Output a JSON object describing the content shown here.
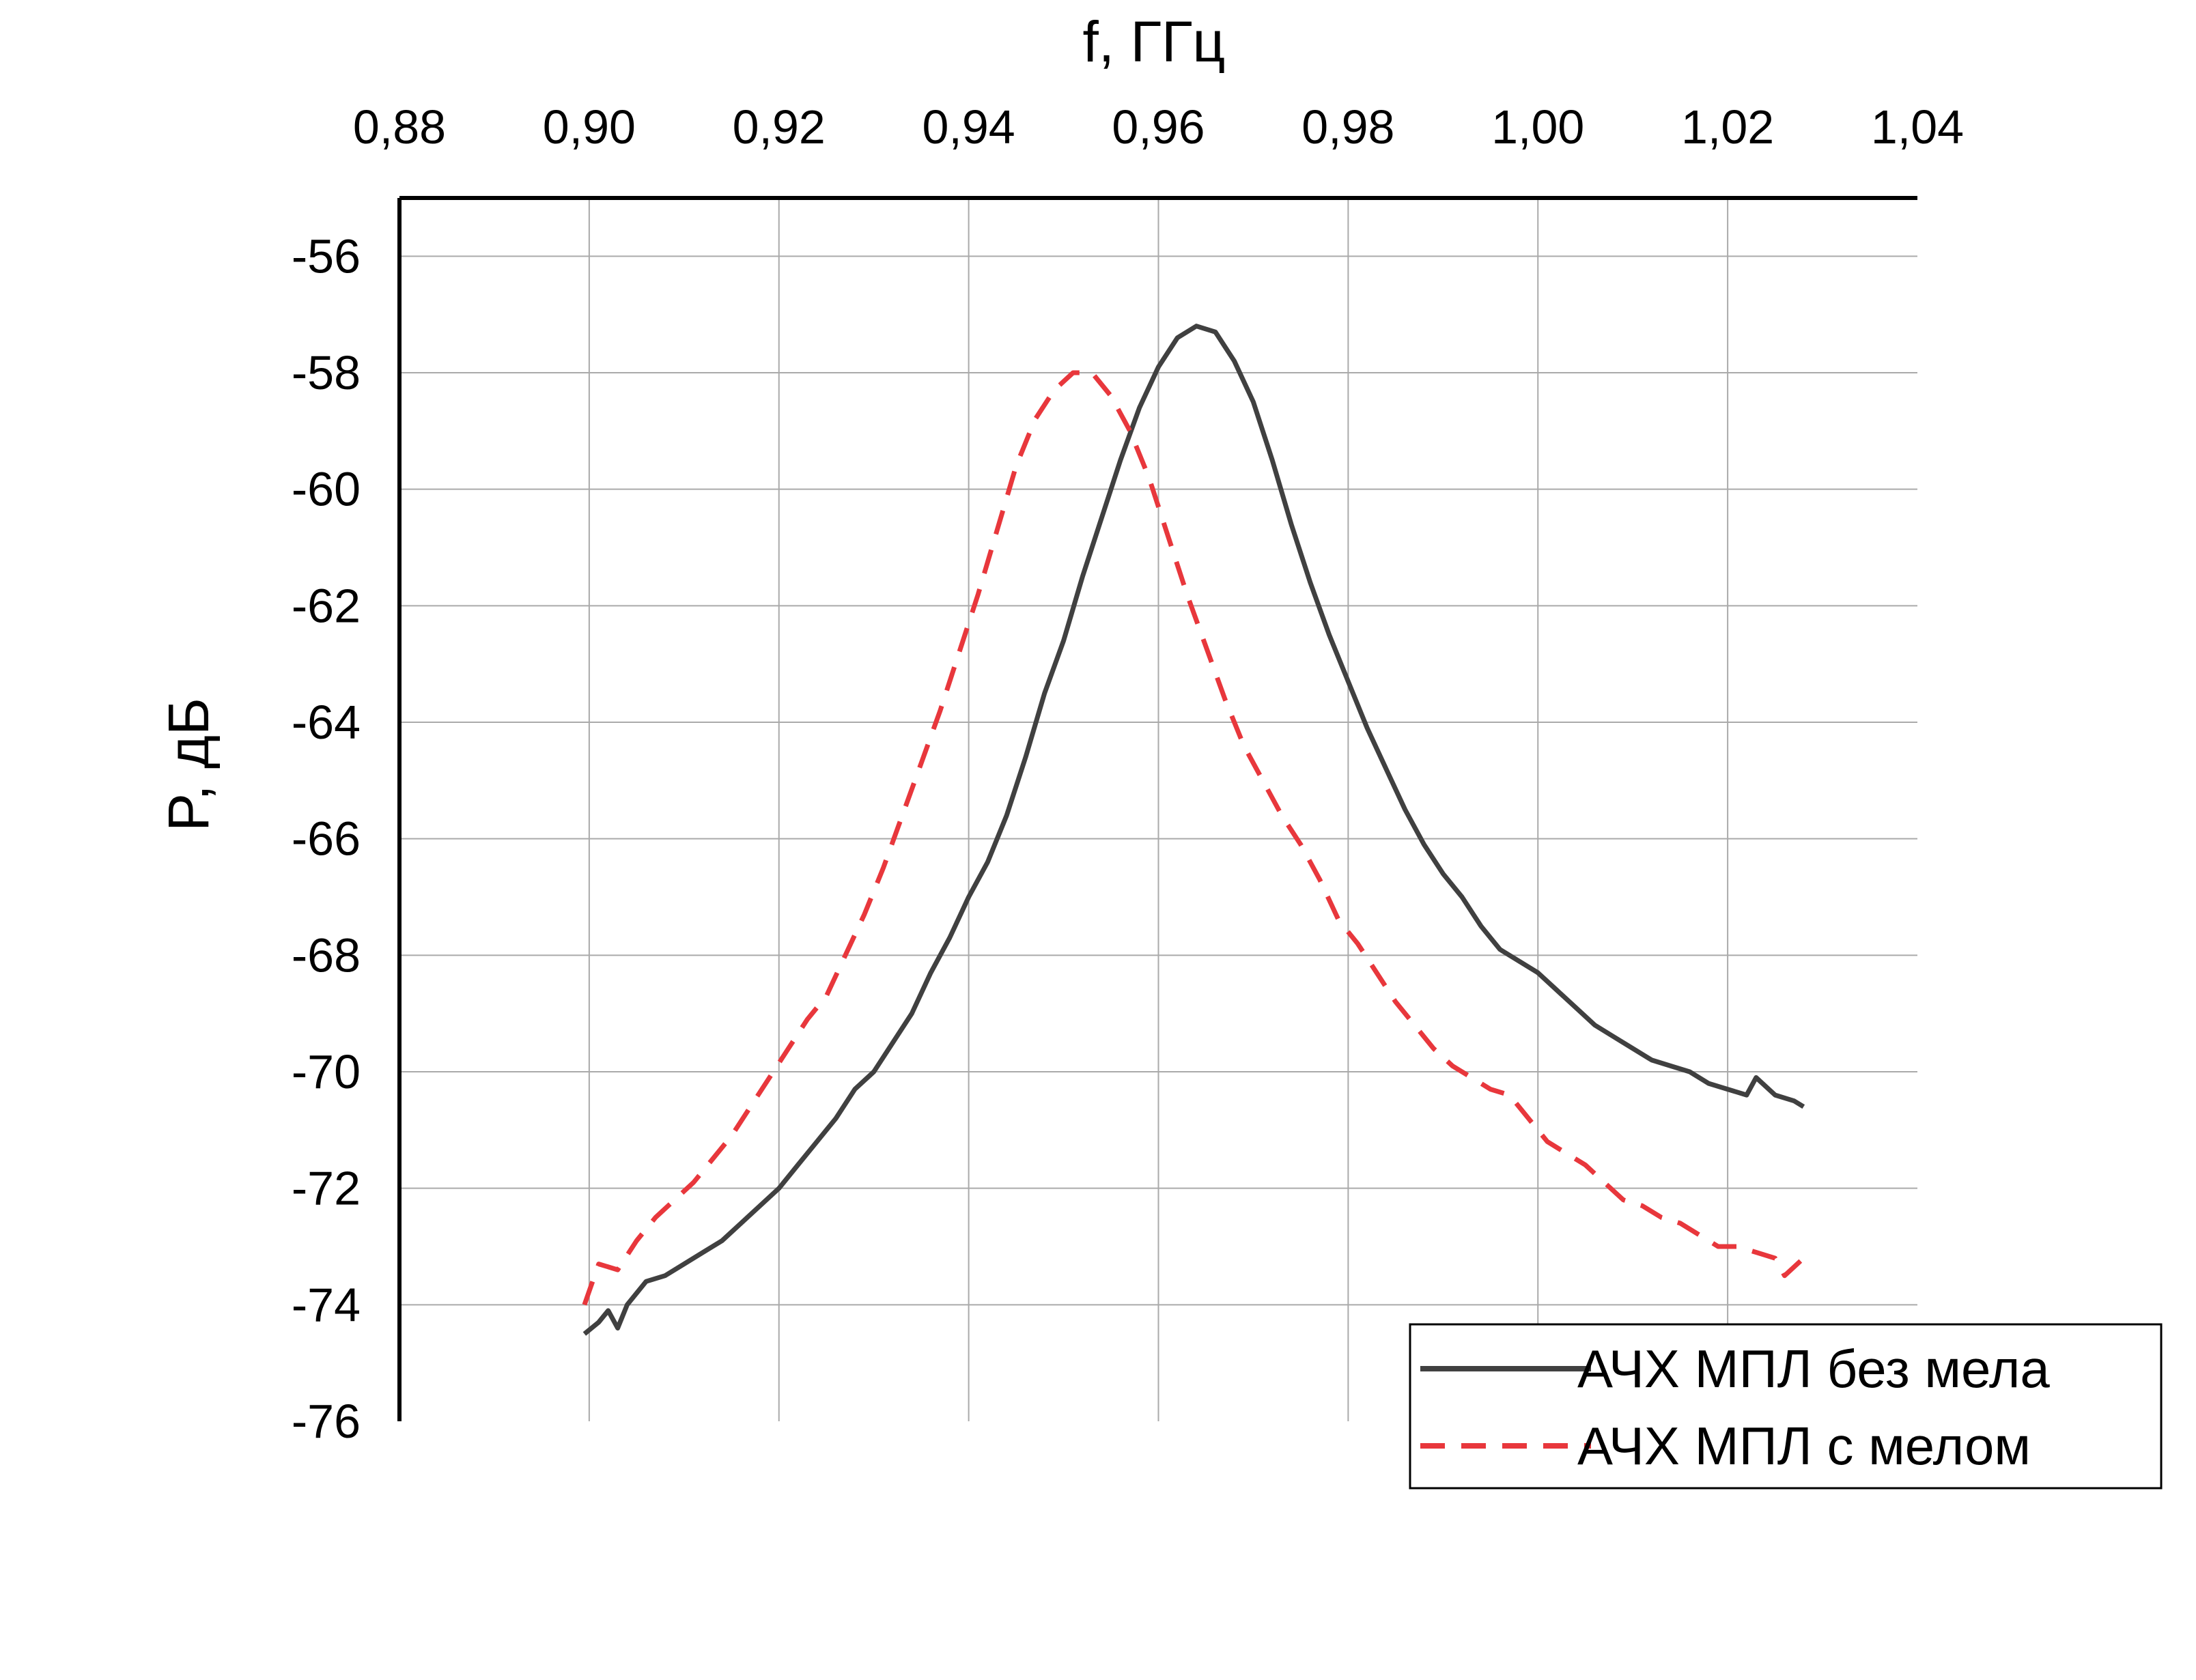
{
  "chart_data": {
    "type": "line",
    "xlabel": "f, ГГц",
    "ylabel": "P, дБ",
    "xlim": [
      0.88,
      1.04
    ],
    "ylim": [
      -76,
      -55
    ],
    "x_ticks": [
      "0,88",
      "0,90",
      "0,92",
      "0,94",
      "0,96",
      "0,98",
      "1,00",
      "1,02",
      "1,04"
    ],
    "y_ticks": [
      "-56",
      "-58",
      "-60",
      "-62",
      "-64",
      "-66",
      "-68",
      "-70",
      "-72",
      "-74",
      "-76"
    ],
    "x_tick_values": [
      0.88,
      0.9,
      0.92,
      0.94,
      0.96,
      0.98,
      1.0,
      1.02,
      1.04
    ],
    "y_tick_values": [
      -56,
      -58,
      -60,
      -62,
      -64,
      -66,
      -68,
      -70,
      -72,
      -74,
      -76
    ],
    "x_axis_position": "top",
    "grid": true,
    "legend_position": "bottom-right",
    "series": [
      {
        "name": "АЧХ МПЛ без мела",
        "color": "#404040",
        "style": "solid",
        "points": [
          [
            0.8995,
            -74.5
          ],
          [
            0.901,
            -74.3
          ],
          [
            0.902,
            -74.1
          ],
          [
            0.903,
            -74.4
          ],
          [
            0.904,
            -74.0
          ],
          [
            0.906,
            -73.6
          ],
          [
            0.908,
            -73.5
          ],
          [
            0.91,
            -73.3
          ],
          [
            0.912,
            -73.1
          ],
          [
            0.914,
            -72.9
          ],
          [
            0.916,
            -72.6
          ],
          [
            0.918,
            -72.3
          ],
          [
            0.92,
            -72.0
          ],
          [
            0.922,
            -71.6
          ],
          [
            0.924,
            -71.2
          ],
          [
            0.926,
            -70.8
          ],
          [
            0.928,
            -70.3
          ],
          [
            0.93,
            -70.0
          ],
          [
            0.932,
            -69.5
          ],
          [
            0.934,
            -69.0
          ],
          [
            0.936,
            -68.3
          ],
          [
            0.938,
            -67.7
          ],
          [
            0.94,
            -67.0
          ],
          [
            0.942,
            -66.4
          ],
          [
            0.944,
            -65.6
          ],
          [
            0.946,
            -64.6
          ],
          [
            0.948,
            -63.5
          ],
          [
            0.95,
            -62.6
          ],
          [
            0.952,
            -61.5
          ],
          [
            0.954,
            -60.5
          ],
          [
            0.956,
            -59.5
          ],
          [
            0.958,
            -58.6
          ],
          [
            0.96,
            -57.9
          ],
          [
            0.962,
            -57.4
          ],
          [
            0.964,
            -57.2
          ],
          [
            0.966,
            -57.3
          ],
          [
            0.968,
            -57.8
          ],
          [
            0.97,
            -58.5
          ],
          [
            0.972,
            -59.5
          ],
          [
            0.974,
            -60.6
          ],
          [
            0.976,
            -61.6
          ],
          [
            0.978,
            -62.5
          ],
          [
            0.98,
            -63.3
          ],
          [
            0.982,
            -64.1
          ],
          [
            0.984,
            -64.8
          ],
          [
            0.986,
            -65.5
          ],
          [
            0.988,
            -66.1
          ],
          [
            0.99,
            -66.6
          ],
          [
            0.992,
            -67.0
          ],
          [
            0.994,
            -67.5
          ],
          [
            0.996,
            -67.9
          ],
          [
            0.998,
            -68.1
          ],
          [
            1.0,
            -68.3
          ],
          [
            1.002,
            -68.6
          ],
          [
            1.004,
            -68.9
          ],
          [
            1.006,
            -69.2
          ],
          [
            1.008,
            -69.4
          ],
          [
            1.01,
            -69.6
          ],
          [
            1.012,
            -69.8
          ],
          [
            1.014,
            -69.9
          ],
          [
            1.016,
            -70.0
          ],
          [
            1.018,
            -70.2
          ],
          [
            1.02,
            -70.3
          ],
          [
            1.022,
            -70.4
          ],
          [
            1.023,
            -70.1
          ],
          [
            1.025,
            -70.4
          ],
          [
            1.027,
            -70.5
          ],
          [
            1.028,
            -70.6
          ]
        ]
      },
      {
        "name": "АЧХ МПЛ с мелом",
        "color": "#e8373c",
        "style": "dashed",
        "points": [
          [
            0.8995,
            -74.0
          ],
          [
            0.901,
            -73.3
          ],
          [
            0.903,
            -73.4
          ],
          [
            0.905,
            -72.9
          ],
          [
            0.907,
            -72.5
          ],
          [
            0.909,
            -72.2
          ],
          [
            0.911,
            -71.9
          ],
          [
            0.913,
            -71.5
          ],
          [
            0.915,
            -71.1
          ],
          [
            0.917,
            -70.6
          ],
          [
            0.919,
            -70.1
          ],
          [
            0.921,
            -69.6
          ],
          [
            0.923,
            -69.1
          ],
          [
            0.925,
            -68.7
          ],
          [
            0.927,
            -68.0
          ],
          [
            0.929,
            -67.3
          ],
          [
            0.931,
            -66.5
          ],
          [
            0.933,
            -65.6
          ],
          [
            0.935,
            -64.7
          ],
          [
            0.937,
            -63.8
          ],
          [
            0.939,
            -62.8
          ],
          [
            0.941,
            -61.8
          ],
          [
            0.943,
            -60.7
          ],
          [
            0.945,
            -59.6
          ],
          [
            0.947,
            -58.8
          ],
          [
            0.949,
            -58.3
          ],
          [
            0.951,
            -58.0
          ],
          [
            0.953,
            -58.0
          ],
          [
            0.955,
            -58.4
          ],
          [
            0.957,
            -59.0
          ],
          [
            0.959,
            -59.8
          ],
          [
            0.961,
            -60.8
          ],
          [
            0.963,
            -61.8
          ],
          [
            0.965,
            -62.7
          ],
          [
            0.967,
            -63.6
          ],
          [
            0.969,
            -64.4
          ],
          [
            0.971,
            -65.0
          ],
          [
            0.973,
            -65.6
          ],
          [
            0.975,
            -66.1
          ],
          [
            0.977,
            -66.7
          ],
          [
            0.979,
            -67.4
          ],
          [
            0.981,
            -67.8
          ],
          [
            0.983,
            -68.3
          ],
          [
            0.985,
            -68.8
          ],
          [
            0.987,
            -69.2
          ],
          [
            0.989,
            -69.6
          ],
          [
            0.991,
            -69.9
          ],
          [
            0.993,
            -70.1
          ],
          [
            0.995,
            -70.3
          ],
          [
            0.997,
            -70.4
          ],
          [
            0.999,
            -70.8
          ],
          [
            1.001,
            -71.2
          ],
          [
            1.003,
            -71.4
          ],
          [
            1.005,
            -71.6
          ],
          [
            1.007,
            -71.9
          ],
          [
            1.009,
            -72.2
          ],
          [
            1.011,
            -72.3
          ],
          [
            1.013,
            -72.5
          ],
          [
            1.015,
            -72.6
          ],
          [
            1.017,
            -72.8
          ],
          [
            1.019,
            -73.0
          ],
          [
            1.021,
            -73.0
          ],
          [
            1.023,
            -73.1
          ],
          [
            1.025,
            -73.2
          ],
          [
            1.026,
            -73.5
          ],
          [
            1.028,
            -73.2
          ]
        ]
      }
    ]
  }
}
